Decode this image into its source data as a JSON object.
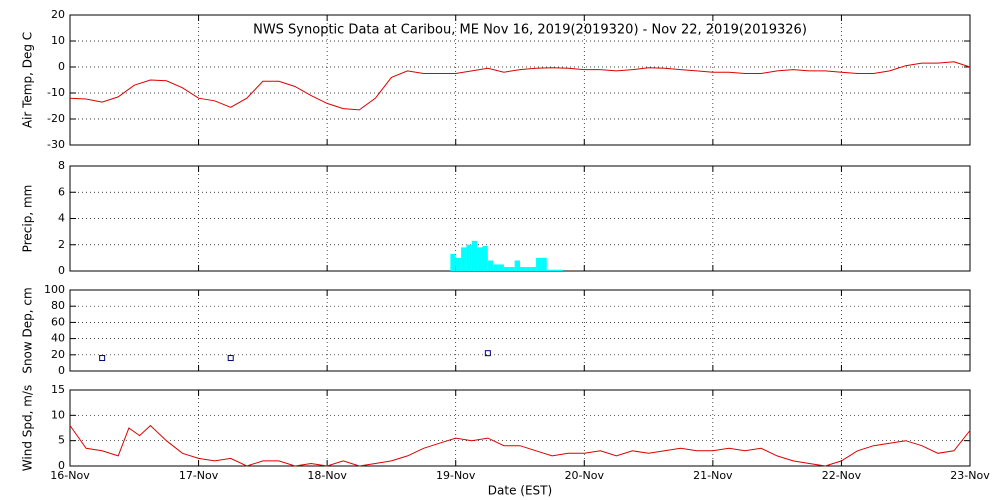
{
  "chart_data": [
    {
      "type": "line",
      "title": "NWS Synoptic Data at Caribou, ME    Nov 16, 2019(2019320) - Nov 22, 2019(2019326)",
      "y_label": "Air Temp, Deg C",
      "ylim": [
        -30,
        20
      ],
      "yticks": [
        -30,
        -20,
        -10,
        0,
        10,
        20
      ],
      "grid": true,
      "color": "#dd0000",
      "x": [
        0,
        3,
        6,
        9,
        12,
        15,
        18,
        21,
        24,
        27,
        30,
        33,
        36,
        39,
        42,
        45,
        48,
        51,
        54,
        57,
        60,
        63,
        66,
        69,
        72,
        75,
        78,
        81,
        84,
        87,
        90,
        93,
        96,
        99,
        102,
        105,
        108,
        111,
        114,
        117,
        120,
        123,
        126,
        129,
        132,
        135,
        138,
        141,
        144,
        147,
        150,
        153,
        156,
        159,
        162,
        165,
        168
      ],
      "values": [
        -12,
        -12.3,
        -13.5,
        -11.5,
        -7,
        -5,
        -5.3,
        -8,
        -12,
        -13,
        -15.5,
        -12,
        -5.5,
        -5.5,
        -7.5,
        -11,
        -14,
        -16,
        -16.5,
        -12,
        -4,
        -1.5,
        -2.5,
        -2.5,
        -2.5,
        -1.5,
        -0.5,
        -2,
        -1,
        -0.5,
        -0.3,
        -0.5,
        -1,
        -1,
        -1.5,
        -1,
        -0.3,
        -0.5,
        -1,
        -1.5,
        -2,
        -2,
        -2.5,
        -2.5,
        -1.5,
        -1,
        -1.5,
        -1.5,
        -2,
        -2.5,
        -2.5,
        -1.5,
        0.5,
        1.5,
        1.5,
        2,
        0
      ]
    },
    {
      "type": "histogram",
      "y_label": "Precip, mm",
      "ylim": [
        0,
        8
      ],
      "yticks": [
        0,
        2,
        4,
        6,
        8
      ],
      "grid": true,
      "color": "#00ffff",
      "bins": [
        71,
        72,
        73,
        74,
        75,
        76,
        77,
        78,
        79,
        80,
        81,
        82,
        83,
        84,
        85,
        86,
        87,
        88,
        89,
        90,
        91,
        92
      ],
      "counts": [
        1.3,
        1.0,
        1.8,
        2.0,
        2.3,
        1.8,
        1.9,
        0.8,
        0.5,
        0.5,
        0.3,
        0.3,
        0.8,
        0.3,
        0.3,
        0.3,
        1.0,
        1.0,
        0.1,
        0.1,
        0.1
      ]
    },
    {
      "type": "scatter",
      "y_label": "Snow Dep, cm",
      "ylim": [
        0,
        100
      ],
      "yticks": [
        0,
        20,
        40,
        60,
        80,
        100
      ],
      "grid": true,
      "color": "#000080",
      "x": [
        6,
        30,
        78
      ],
      "values": [
        16,
        16,
        22
      ]
    },
    {
      "type": "line",
      "y_label": "Wind Spd, m/s",
      "x_label": "Date (EST)",
      "ylim": [
        0,
        15
      ],
      "yticks": [
        0,
        5,
        10,
        15
      ],
      "grid": true,
      "color": "#dd0000",
      "xlim": [
        0,
        168
      ],
      "xticks": [
        {
          "value": 0,
          "label": "16-Nov"
        },
        {
          "value": 24,
          "label": "17-Nov"
        },
        {
          "value": 48,
          "label": "18-Nov"
        },
        {
          "value": 72,
          "label": "19-Nov"
        },
        {
          "value": 96,
          "label": "20-Nov"
        },
        {
          "value": 120,
          "label": "21-Nov"
        },
        {
          "value": 144,
          "label": "22-Nov"
        },
        {
          "value": 168,
          "label": "23-Nov"
        }
      ],
      "x": [
        0,
        3,
        6,
        9,
        11,
        13,
        15,
        18,
        21,
        24,
        27,
        30,
        33,
        36,
        39,
        42,
        45,
        48,
        51,
        54,
        57,
        60,
        63,
        66,
        69,
        72,
        75,
        78,
        81,
        84,
        87,
        90,
        93,
        96,
        99,
        102,
        105,
        108,
        111,
        114,
        117,
        120,
        123,
        126,
        129,
        132,
        135,
        138,
        141,
        144,
        147,
        150,
        153,
        156,
        159,
        162,
        165,
        168
      ],
      "values": [
        8,
        3.5,
        3,
        2,
        7.5,
        6,
        8,
        5,
        2.5,
        1.5,
        1,
        1.5,
        0,
        1,
        1,
        0,
        0.5,
        0,
        1,
        0,
        0.5,
        1,
        2,
        3.5,
        4.5,
        5.5,
        5,
        5.5,
        4,
        4,
        3,
        2,
        2.5,
        2.5,
        3,
        2,
        3,
        2.5,
        3,
        3.5,
        3,
        3,
        3.5,
        3,
        3.5,
        2,
        1,
        0.5,
        0,
        1,
        3,
        4,
        4.5,
        5,
        4,
        2.5,
        3,
        7
      ]
    }
  ]
}
